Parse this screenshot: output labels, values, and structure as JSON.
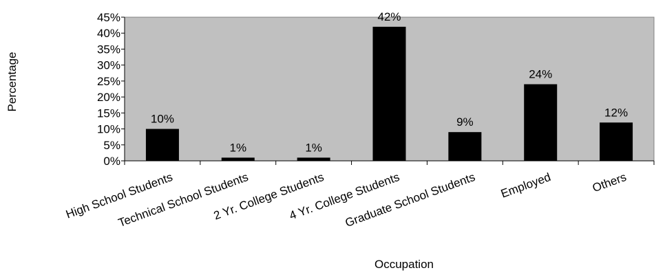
{
  "chart_data": {
    "type": "bar",
    "title": "",
    "xlabel": "Occupation",
    "ylabel": "Percentage",
    "categories": [
      "High School Students",
      "Technical School Students",
      "2 Yr. College Students",
      "4 Yr. College Students",
      "Graduate School Students",
      "Employed",
      "Others"
    ],
    "values": [
      10,
      1,
      1,
      42,
      9,
      24,
      12
    ],
    "value_labels": [
      "10%",
      "1%",
      "1%",
      "42%",
      "9%",
      "24%",
      "12%"
    ],
    "ylim": [
      0,
      45
    ],
    "y_ticks": [
      "0%",
      "5%",
      "10%",
      "15%",
      "20%",
      "25%",
      "30%",
      "35%",
      "40%",
      "45%"
    ],
    "grid": false,
    "legend": "none",
    "colors": {
      "plot_background": "#c0c0c0",
      "bar": "#000000"
    }
  }
}
